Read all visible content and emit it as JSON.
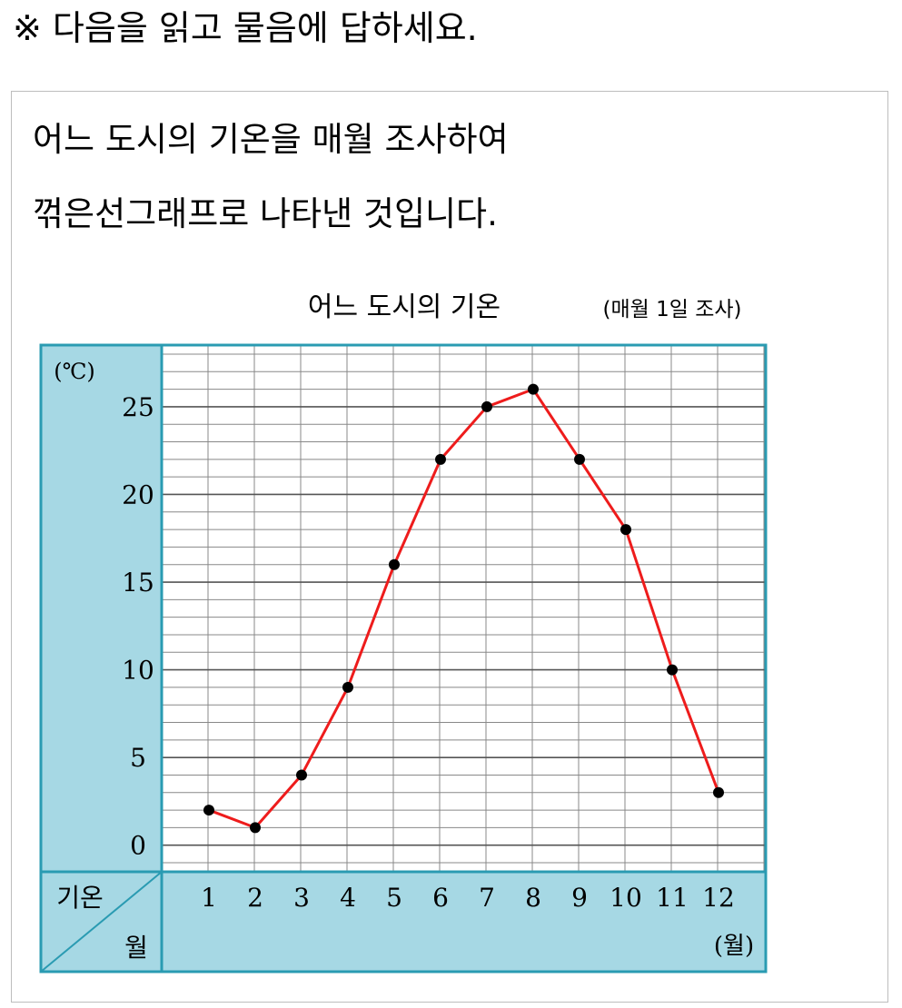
{
  "instruction": "※ 다음을 읽고 물음에 답하세요.",
  "intro": {
    "line1": "어느 도시의 기온을 매월 조사하여",
    "line2": "꺾은선그래프로 나타낸 것입니다."
  },
  "colors": {
    "panel": "#a6d8e4",
    "frame": "#2a9bb2",
    "line": "#ee1c1c",
    "grid": "#888888",
    "point": "#000000"
  },
  "chart_data": {
    "type": "line",
    "title": "어느 도시의 기온",
    "subtitle": "(매월 1일 조사)",
    "y_unit": "(℃)",
    "x_unit": "(월)",
    "corner_top": "기온",
    "corner_bottom": "월",
    "categories": [
      "1",
      "2",
      "3",
      "4",
      "5",
      "6",
      "7",
      "8",
      "9",
      "10",
      "11",
      "12"
    ],
    "values": [
      2,
      1,
      4,
      9,
      16,
      22,
      25,
      26,
      22,
      18,
      10,
      3
    ],
    "y_ticks": [
      "0",
      "5",
      "10",
      "15",
      "20",
      "25"
    ],
    "ylim": [
      -1,
      28
    ],
    "grid": true
  }
}
